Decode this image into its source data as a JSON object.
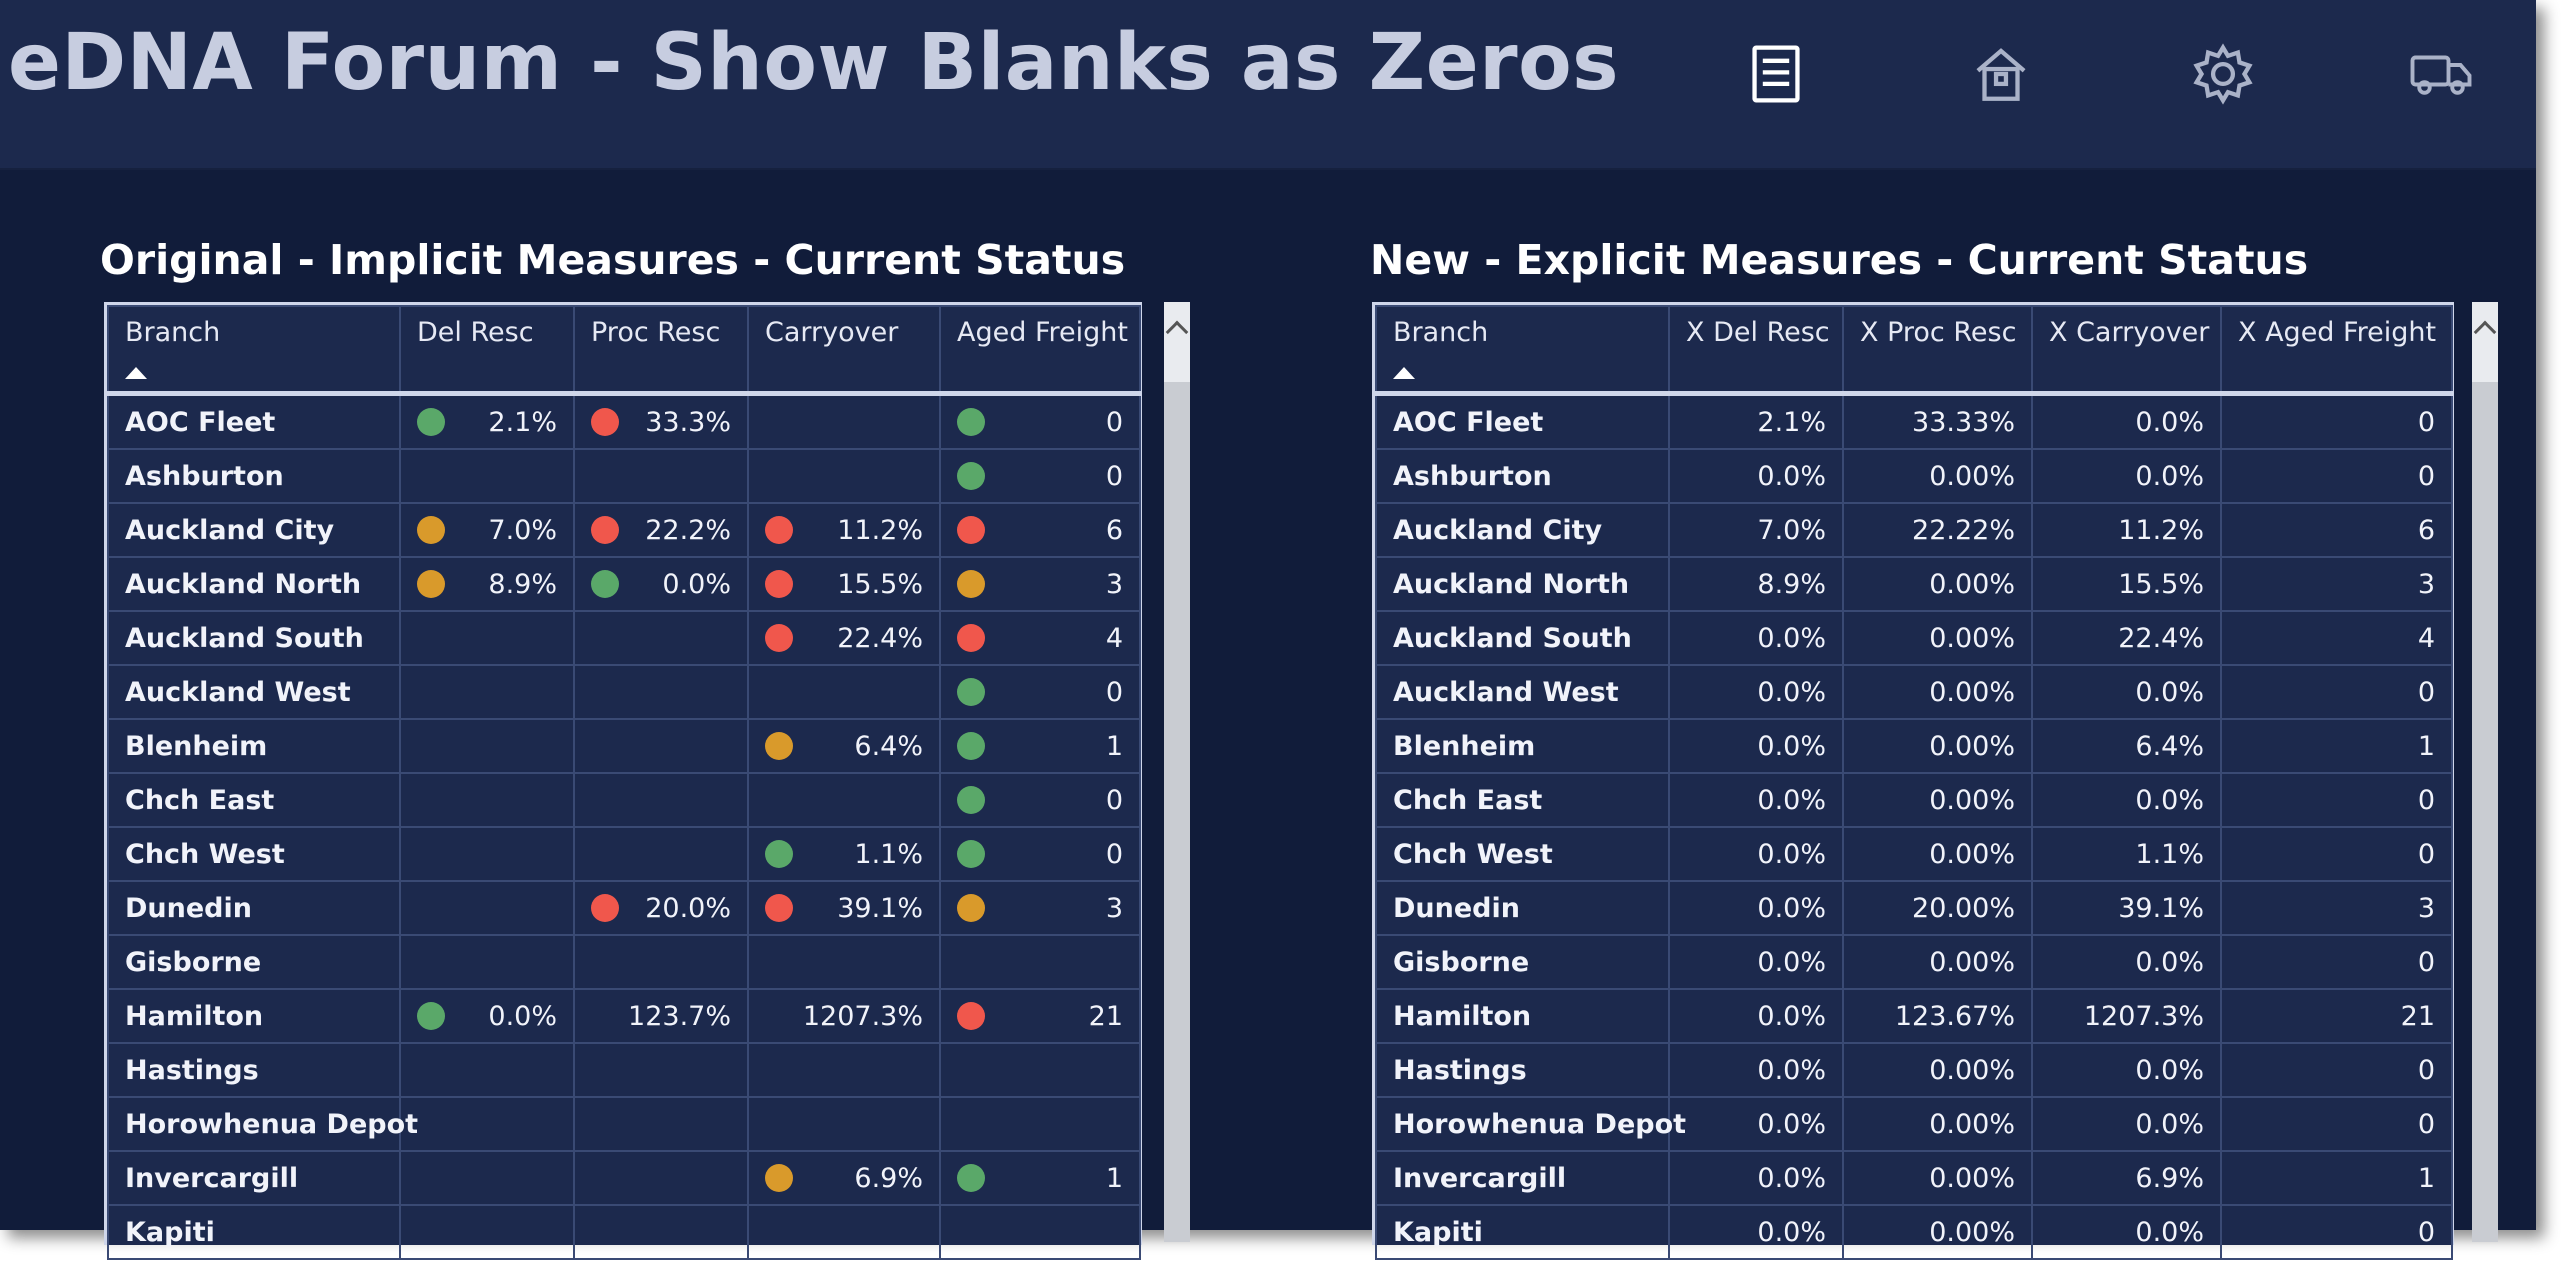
{
  "header": {
    "title": "eDNA Forum - Show Blanks as Zeros",
    "icons": [
      "report-icon",
      "home-icon",
      "gear-icon",
      "truck-icon"
    ]
  },
  "colors": {
    "background": "#111c3a",
    "header": "#1c294d",
    "table": "#1c294d",
    "green": "#5aa869",
    "red": "#f0574c",
    "orange": "#d99a2b"
  },
  "left": {
    "title": "Original - Implicit Measures - Current Status",
    "columns": [
      "Branch",
      "Del Resc",
      "Proc Resc",
      "Carryover",
      "Aged Freight"
    ],
    "rows": [
      {
        "branch": "AOC Fleet",
        "del": "2.1%",
        "del_s": "green",
        "proc": "33.3%",
        "proc_s": "red",
        "carry": "",
        "carry_s": "none",
        "aged": "0",
        "aged_s": "green"
      },
      {
        "branch": "Ashburton",
        "del": "",
        "del_s": "none",
        "proc": "",
        "proc_s": "none",
        "carry": "",
        "carry_s": "none",
        "aged": "0",
        "aged_s": "green"
      },
      {
        "branch": "Auckland City",
        "del": "7.0%",
        "del_s": "orange",
        "proc": "22.2%",
        "proc_s": "red",
        "carry": "11.2%",
        "carry_s": "red",
        "aged": "6",
        "aged_s": "red"
      },
      {
        "branch": "Auckland North",
        "del": "8.9%",
        "del_s": "orange",
        "proc": "0.0%",
        "proc_s": "green",
        "carry": "15.5%",
        "carry_s": "red",
        "aged": "3",
        "aged_s": "orange"
      },
      {
        "branch": "Auckland South",
        "del": "",
        "del_s": "none",
        "proc": "",
        "proc_s": "none",
        "carry": "22.4%",
        "carry_s": "red",
        "aged": "4",
        "aged_s": "red"
      },
      {
        "branch": "Auckland West",
        "del": "",
        "del_s": "none",
        "proc": "",
        "proc_s": "none",
        "carry": "",
        "carry_s": "none",
        "aged": "0",
        "aged_s": "green"
      },
      {
        "branch": "Blenheim",
        "del": "",
        "del_s": "none",
        "proc": "",
        "proc_s": "none",
        "carry": "6.4%",
        "carry_s": "orange",
        "aged": "1",
        "aged_s": "green"
      },
      {
        "branch": "Chch East",
        "del": "",
        "del_s": "none",
        "proc": "",
        "proc_s": "none",
        "carry": "",
        "carry_s": "none",
        "aged": "0",
        "aged_s": "green"
      },
      {
        "branch": "Chch West",
        "del": "",
        "del_s": "none",
        "proc": "",
        "proc_s": "none",
        "carry": "1.1%",
        "carry_s": "green",
        "aged": "0",
        "aged_s": "green"
      },
      {
        "branch": "Dunedin",
        "del": "",
        "del_s": "none",
        "proc": "20.0%",
        "proc_s": "red",
        "carry": "39.1%",
        "carry_s": "red",
        "aged": "3",
        "aged_s": "orange"
      },
      {
        "branch": "Gisborne",
        "del": "",
        "del_s": "none",
        "proc": "",
        "proc_s": "none",
        "carry": "",
        "carry_s": "none",
        "aged": "",
        "aged_s": "none"
      },
      {
        "branch": "Hamilton",
        "del": "0.0%",
        "del_s": "green",
        "proc": "123.7%",
        "proc_s": "none",
        "carry": "1207.3%",
        "carry_s": "none",
        "aged": "21",
        "aged_s": "red"
      },
      {
        "branch": "Hastings",
        "del": "",
        "del_s": "none",
        "proc": "",
        "proc_s": "none",
        "carry": "",
        "carry_s": "none",
        "aged": "",
        "aged_s": "none"
      },
      {
        "branch": "Horowhenua Depot",
        "del": "",
        "del_s": "none",
        "proc": "",
        "proc_s": "none",
        "carry": "",
        "carry_s": "none",
        "aged": "",
        "aged_s": "none"
      },
      {
        "branch": "Invercargill",
        "del": "",
        "del_s": "none",
        "proc": "",
        "proc_s": "none",
        "carry": "6.9%",
        "carry_s": "orange",
        "aged": "1",
        "aged_s": "green"
      },
      {
        "branch": "Kapiti",
        "del": "",
        "del_s": "none",
        "proc": "",
        "proc_s": "none",
        "carry": "",
        "carry_s": "none",
        "aged": "",
        "aged_s": "none"
      }
    ]
  },
  "right": {
    "title": "New - Explicit Measures - Current Status",
    "columns": [
      "Branch",
      "X Del Resc",
      "X Proc Resc",
      "X Carryover",
      "X Aged Freight"
    ],
    "rows": [
      [
        "AOC Fleet",
        "2.1%",
        "33.33%",
        "0.0%",
        "0"
      ],
      [
        "Ashburton",
        "0.0%",
        "0.00%",
        "0.0%",
        "0"
      ],
      [
        "Auckland City",
        "7.0%",
        "22.22%",
        "11.2%",
        "6"
      ],
      [
        "Auckland North",
        "8.9%",
        "0.00%",
        "15.5%",
        "3"
      ],
      [
        "Auckland South",
        "0.0%",
        "0.00%",
        "22.4%",
        "4"
      ],
      [
        "Auckland West",
        "0.0%",
        "0.00%",
        "0.0%",
        "0"
      ],
      [
        "Blenheim",
        "0.0%",
        "0.00%",
        "6.4%",
        "1"
      ],
      [
        "Chch East",
        "0.0%",
        "0.00%",
        "0.0%",
        "0"
      ],
      [
        "Chch West",
        "0.0%",
        "0.00%",
        "1.1%",
        "0"
      ],
      [
        "Dunedin",
        "0.0%",
        "20.00%",
        "39.1%",
        "3"
      ],
      [
        "Gisborne",
        "0.0%",
        "0.00%",
        "0.0%",
        "0"
      ],
      [
        "Hamilton",
        "0.0%",
        "123.67%",
        "1207.3%",
        "21"
      ],
      [
        "Hastings",
        "0.0%",
        "0.00%",
        "0.0%",
        "0"
      ],
      [
        "Horowhenua Depot",
        "0.0%",
        "0.00%",
        "0.0%",
        "0"
      ],
      [
        "Invercargill",
        "0.0%",
        "0.00%",
        "6.9%",
        "1"
      ],
      [
        "Kapiti",
        "0.0%",
        "0.00%",
        "0.0%",
        "0"
      ]
    ]
  }
}
